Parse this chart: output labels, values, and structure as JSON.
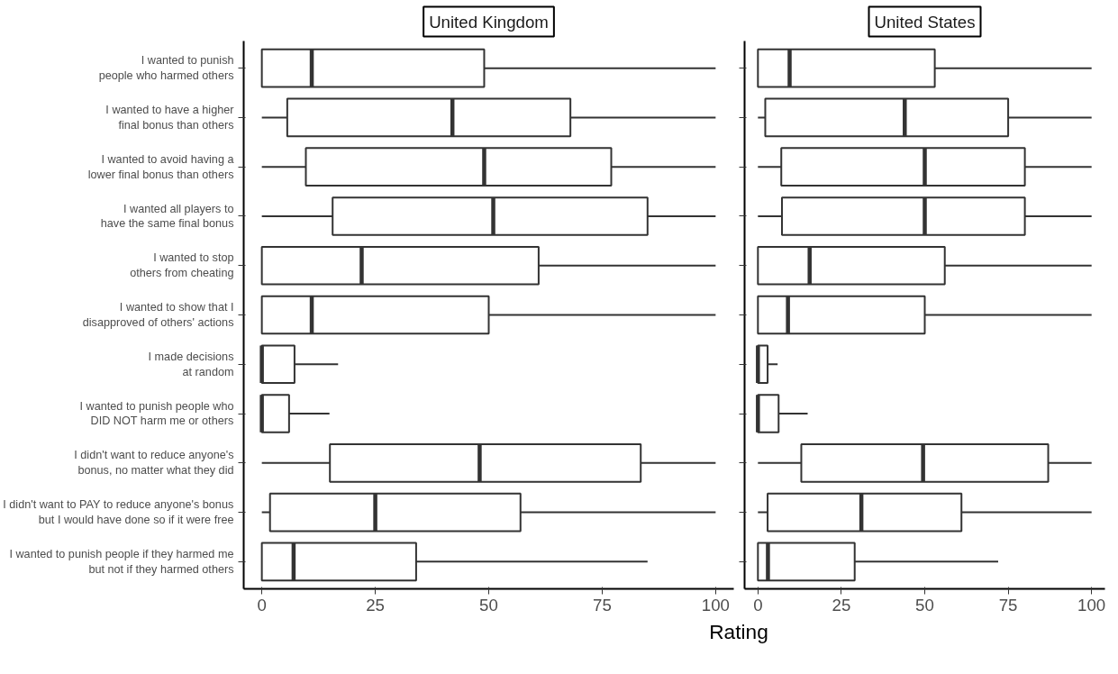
{
  "chart_data": [
    {
      "type": "box",
      "orientation": "horizontal",
      "title": "United Kingdom",
      "xlabel": "Rating",
      "xlim": [
        -4,
        104
      ],
      "xticks": [
        0,
        25,
        50,
        75,
        100
      ],
      "grid": false,
      "categories": [
        "I wanted to punish\npeople who harmed others",
        "I wanted to have a higher\nfinal bonus than others",
        "I wanted to avoid having a\nlower final bonus than others",
        "I wanted all players to\nhave the same final bonus",
        "I wanted to stop\nothers from cheating",
        "I wanted to show that I\ndisapproved of others' actions",
        "I made decisions\nat random",
        "I wanted to punish people who\nDID NOT harm me or others",
        "I didn't want to reduce anyone's\nbonus, no matter what they did",
        "I didn't want to PAY to reduce anyone's bonus\nbut I would have done so if it were free",
        "I wanted to punish people if they harmed me\nbut not if they harmed others"
      ],
      "boxes": [
        {
          "low": 0,
          "q1": 0,
          "median": 11,
          "q3": 49,
          "high": 100
        },
        {
          "low": 0,
          "q1": 5.6,
          "median": 42,
          "q3": 68,
          "high": 100
        },
        {
          "low": 0,
          "q1": 9.7,
          "median": 49,
          "q3": 77,
          "high": 100
        },
        {
          "low": 0,
          "q1": 15.6,
          "median": 51,
          "q3": 85,
          "high": 100
        },
        {
          "low": 0,
          "q1": 0,
          "median": 22,
          "q3": 61,
          "high": 100
        },
        {
          "low": 0,
          "q1": 0,
          "median": 11,
          "q3": 50,
          "high": 100
        },
        {
          "low": 0,
          "q1": 0,
          "median": 0,
          "q3": 7.2,
          "high": 16.8
        },
        {
          "low": 0,
          "q1": 0,
          "median": 0,
          "q3": 6,
          "high": 14.9
        },
        {
          "low": 0,
          "q1": 15,
          "median": 48,
          "q3": 83.5,
          "high": 100
        },
        {
          "low": 0,
          "q1": 1.8,
          "median": 25,
          "q3": 57,
          "high": 100
        },
        {
          "low": 0,
          "q1": 0,
          "median": 7,
          "q3": 34,
          "high": 85
        }
      ]
    },
    {
      "type": "box",
      "orientation": "horizontal",
      "title": "United States",
      "xlim": [
        -4,
        104
      ],
      "xticks": [
        0,
        25,
        50,
        75,
        100
      ],
      "grid": false,
      "tick_labels": "x",
      "boxes": [
        {
          "low": 0,
          "q1": 0,
          "median": 9.5,
          "q3": 53,
          "high": 100
        },
        {
          "low": 0,
          "q1": 2.2,
          "median": 44,
          "q3": 75,
          "high": 100
        },
        {
          "low": 0,
          "q1": 7,
          "median": 50,
          "q3": 80,
          "high": 100
        },
        {
          "low": 0,
          "q1": 7.2,
          "median": 50,
          "q3": 80,
          "high": 100
        },
        {
          "low": 0,
          "q1": 0,
          "median": 15.5,
          "q3": 56,
          "high": 100
        },
        {
          "low": 0,
          "q1": 0,
          "median": 9,
          "q3": 50,
          "high": 100
        },
        {
          "low": 0,
          "q1": 0,
          "median": 0,
          "q3": 2.9,
          "high": 5.9
        },
        {
          "low": 0,
          "q1": 0,
          "median": 0,
          "q3": 6.2,
          "high": 14.9
        },
        {
          "low": 0,
          "q1": 13,
          "median": 49.5,
          "q3": 87,
          "high": 100
        },
        {
          "low": 0,
          "q1": 2.9,
          "median": 31,
          "q3": 61,
          "high": 100
        },
        {
          "low": 0,
          "q1": 0,
          "median": 3,
          "q3": 29,
          "high": 72
        }
      ]
    }
  ]
}
